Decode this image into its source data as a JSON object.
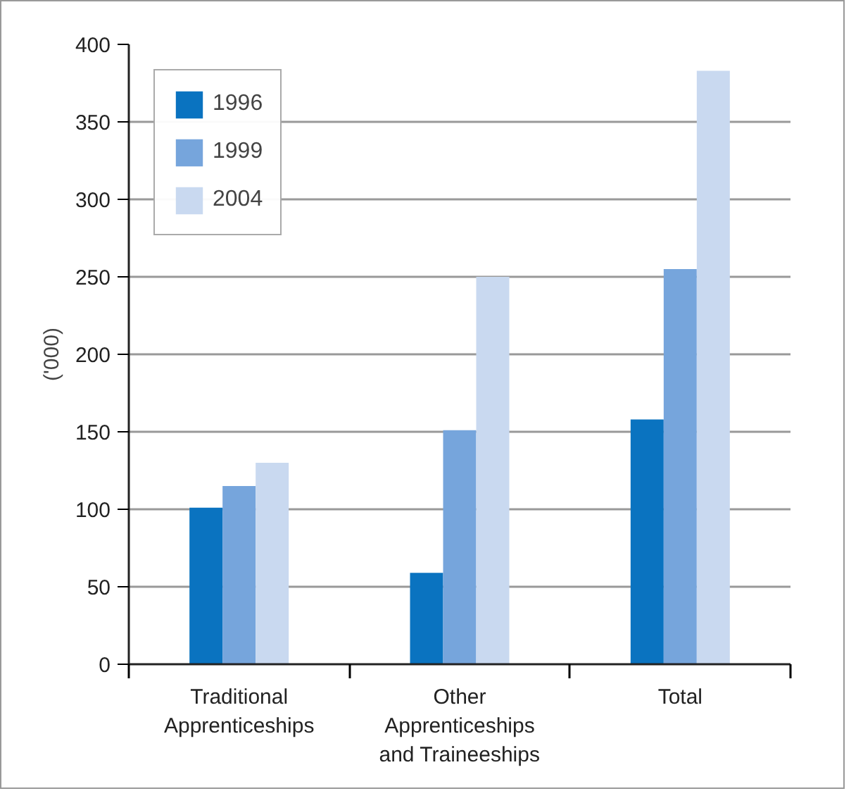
{
  "chart_data": {
    "type": "bar",
    "ylabel": "('000)",
    "categories": [
      "Traditional Apprenticeships",
      "Other Apprenticeships and Traineeships",
      "Total"
    ],
    "series": [
      {
        "name": "1996",
        "color": "#0a73c0",
        "values": [
          101,
          59,
          158
        ]
      },
      {
        "name": "1999",
        "color": "#76a5dc",
        "values": [
          115,
          151,
          255
        ]
      },
      {
        "name": "2004",
        "color": "#c9d9f0",
        "values": [
          130,
          250,
          383
        ]
      }
    ],
    "ylim": [
      0,
      400
    ],
    "yticks": [
      0,
      50,
      100,
      150,
      200,
      250,
      300,
      350,
      400
    ],
    "grid": "y",
    "legend": "top left"
  }
}
